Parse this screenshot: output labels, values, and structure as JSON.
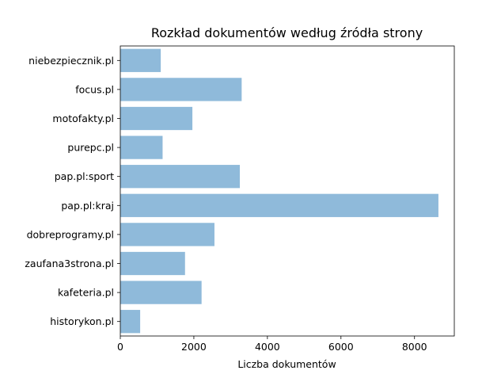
{
  "chart_data": {
    "type": "bar",
    "orientation": "horizontal",
    "title": "Rozkład dokumentów według źródła strony",
    "xlabel": "Liczba dokumentów",
    "ylabel": "",
    "categories": [
      "niebezpiecznik.pl",
      "focus.pl",
      "motofakty.pl",
      "purepc.pl",
      "pap.pl:sport",
      "pap.pl:kraj",
      "dobreprogramy.pl",
      "zaufana3strona.pl",
      "kafeteria.pl",
      "historykon.pl"
    ],
    "values": [
      1100,
      3300,
      1960,
      1150,
      3250,
      8650,
      2560,
      1760,
      2210,
      540
    ],
    "xlim": [
      0,
      9082
    ],
    "xticks": [
      0,
      2000,
      4000,
      6000,
      8000
    ],
    "xtick_labels": [
      "0",
      "2000",
      "4000",
      "6000",
      "8000"
    ],
    "bar_color": "#8fbada",
    "grid": false,
    "legend": "none"
  }
}
